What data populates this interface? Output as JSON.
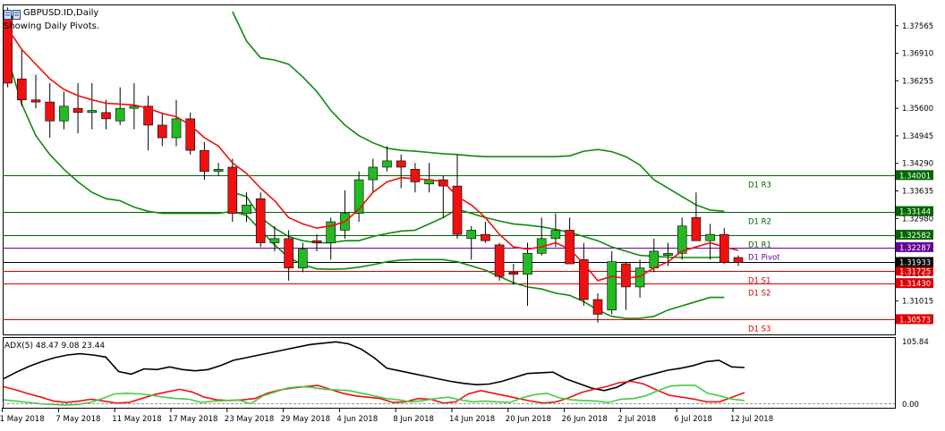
{
  "chart": {
    "title": "GBPUSD.ID,Daily",
    "subtitle": "Showing Daily Pivots.",
    "adx_label": "ADX(5) 48.47 9.08 23.44"
  },
  "colors": {
    "bull": "#22bb22",
    "bear": "#ee1111",
    "ema": "#ee1111",
    "bands": "#118811",
    "resistance": "#006600",
    "support": "#dd0000",
    "pivot": "#660099",
    "price": "#000000",
    "adx_main": "#000000",
    "adx_plus": "#44cc44",
    "adx_minus": "#ee1111"
  },
  "chart_data": [
    {
      "type": "candlestick",
      "title": "GBPUSD.ID,Daily",
      "ylim": [
        1.3022,
        1.3805
      ],
      "y_ticks": [
        "1.37565",
        "1.36910",
        "1.36255",
        "1.35600",
        "1.34945",
        "1.34290",
        "1.33635",
        "1.32980",
        "1.32325",
        "1.31670",
        "1.31015"
      ],
      "x_ticks": [
        {
          "index": 0,
          "label": "1 May 2018"
        },
        {
          "index": 4,
          "label": "7 May 2018"
        },
        {
          "index": 8,
          "label": "11 May 2018"
        },
        {
          "index": 12,
          "label": "17 May 2018"
        },
        {
          "index": 16,
          "label": "23 May 2018"
        },
        {
          "index": 20,
          "label": "29 May 2018"
        },
        {
          "index": 24,
          "label": "4 Jun 2018"
        },
        {
          "index": 28,
          "label": "8 Jun 2018"
        },
        {
          "index": 32,
          "label": "14 Jun 2018"
        },
        {
          "index": 36,
          "label": "20 Jun 2018"
        },
        {
          "index": 40,
          "label": "26 Jun 2018"
        },
        {
          "index": 44,
          "label": "2 Jul 2018"
        },
        {
          "index": 48,
          "label": "6 Jul 2018"
        },
        {
          "index": 52,
          "label": "12 Jul 2018"
        }
      ],
      "candles": [
        [
          1.378,
          1.38,
          1.361,
          1.362
        ],
        [
          1.363,
          1.37,
          1.3565,
          1.358
        ],
        [
          1.358,
          1.364,
          1.356,
          1.3575
        ],
        [
          1.3575,
          1.362,
          1.349,
          1.353
        ],
        [
          1.353,
          1.36,
          1.351,
          1.3565
        ],
        [
          1.356,
          1.362,
          1.35,
          1.355
        ],
        [
          1.355,
          1.362,
          1.351,
          1.3555
        ],
        [
          1.355,
          1.358,
          1.351,
          1.3535
        ],
        [
          1.353,
          1.361,
          1.352,
          1.356
        ],
        [
          1.356,
          1.362,
          1.351,
          1.3565
        ],
        [
          1.3565,
          1.359,
          1.346,
          1.352
        ],
        [
          1.352,
          1.355,
          1.347,
          1.349
        ],
        [
          1.349,
          1.358,
          1.347,
          1.3535
        ],
        [
          1.3535,
          1.355,
          1.345,
          1.346
        ],
        [
          1.346,
          1.348,
          1.339,
          1.341
        ],
        [
          1.341,
          1.343,
          1.34,
          1.3415
        ],
        [
          1.342,
          1.344,
          1.329,
          1.331
        ],
        [
          1.331,
          1.336,
          1.329,
          1.333
        ],
        [
          1.3345,
          1.336,
          1.323,
          1.324
        ],
        [
          1.324,
          1.328,
          1.322,
          1.325
        ],
        [
          1.325,
          1.327,
          1.315,
          1.318
        ],
        [
          1.318,
          1.324,
          1.317,
          1.3225
        ],
        [
          1.3245,
          1.326,
          1.322,
          1.324
        ],
        [
          1.324,
          1.33,
          1.32,
          1.329
        ],
        [
          1.327,
          1.3365,
          1.325,
          1.331
        ],
        [
          1.331,
          1.341,
          1.329,
          1.339
        ],
        [
          1.339,
          1.344,
          1.336,
          1.342
        ],
        [
          1.342,
          1.347,
          1.341,
          1.3435
        ],
        [
          1.3435,
          1.345,
          1.337,
          1.342
        ],
        [
          1.3415,
          1.343,
          1.336,
          1.3385
        ],
        [
          1.338,
          1.343,
          1.336,
          1.339
        ],
        [
          1.339,
          1.34,
          1.33,
          1.3375
        ],
        [
          1.3375,
          1.345,
          1.325,
          1.326
        ],
        [
          1.325,
          1.328,
          1.32,
          1.327
        ],
        [
          1.326,
          1.329,
          1.324,
          1.3245
        ],
        [
          1.3235,
          1.324,
          1.315,
          1.316
        ],
        [
          1.317,
          1.319,
          1.314,
          1.3165
        ],
        [
          1.3165,
          1.324,
          1.309,
          1.3215
        ],
        [
          1.3215,
          1.33,
          1.321,
          1.325
        ],
        [
          1.325,
          1.331,
          1.323,
          1.327
        ],
        [
          1.327,
          1.33,
          1.319,
          1.319
        ],
        [
          1.32,
          1.324,
          1.309,
          1.3105
        ],
        [
          1.3105,
          1.312,
          1.305,
          1.307
        ],
        [
          1.308,
          1.322,
          1.307,
          1.3195
        ],
        [
          1.319,
          1.3195,
          1.308,
          1.3135
        ],
        [
          1.3135,
          1.32,
          1.311,
          1.318
        ],
        [
          1.318,
          1.325,
          1.317,
          1.322
        ],
        [
          1.321,
          1.324,
          1.3185,
          1.3215
        ],
        [
          1.3215,
          1.33,
          1.32,
          1.328
        ],
        [
          1.33,
          1.336,
          1.325,
          1.3245
        ],
        [
          1.3245,
          1.3285,
          1.32,
          1.326
        ],
        [
          1.326,
          1.3275,
          1.319,
          1.3193
        ],
        [
          1.3205,
          1.321,
          1.3185,
          1.3193
        ]
      ],
      "ema": [
        1.375,
        1.37,
        1.3665,
        1.363,
        1.3605,
        1.359,
        1.358,
        1.3572,
        1.357,
        1.3568,
        1.356,
        1.3548,
        1.354,
        1.352,
        1.349,
        1.347,
        1.343,
        1.3405,
        1.337,
        1.334,
        1.33,
        1.3285,
        1.3275,
        1.328,
        1.329,
        1.332,
        1.336,
        1.3385,
        1.3395,
        1.3392,
        1.339,
        1.3386,
        1.335,
        1.333,
        1.33,
        1.326,
        1.323,
        1.3225,
        1.323,
        1.324,
        1.3225,
        1.319,
        1.315,
        1.316,
        1.3155,
        1.316,
        1.318,
        1.3195,
        1.322,
        1.323,
        1.324,
        1.323,
        1.3222
      ],
      "upper_band": [
        null,
        null,
        null,
        null,
        null,
        null,
        null,
        null,
        null,
        null,
        null,
        null,
        null,
        null,
        null,
        null,
        1.379,
        1.372,
        1.368,
        1.3675,
        1.3665,
        1.3635,
        1.36,
        1.3555,
        1.352,
        1.3495,
        1.3478,
        1.3465,
        1.346,
        1.3458,
        1.3455,
        1.3452,
        1.345,
        1.3447,
        1.3445,
        1.3445,
        1.3445,
        1.3445,
        1.3445,
        1.3445,
        1.3447,
        1.3458,
        1.3462,
        1.3457,
        1.3445,
        1.3425,
        1.339,
        1.337,
        1.335,
        1.333,
        1.3318,
        1.3315,
        null
      ],
      "lower_band": [
        1.368,
        1.357,
        1.3495,
        1.345,
        1.3415,
        1.3385,
        1.336,
        1.3345,
        1.334,
        1.3325,
        1.3315,
        1.331,
        1.331,
        1.331,
        1.331,
        1.331,
        1.3315,
        1.3305,
        1.327,
        1.3235,
        1.3205,
        1.3188,
        1.3178,
        1.3177,
        1.3178,
        1.3182,
        1.3188,
        1.3195,
        1.3199,
        1.32,
        1.32,
        1.32,
        1.3195,
        1.3185,
        1.3175,
        1.316,
        1.3145,
        1.3135,
        1.313,
        1.312,
        1.3115,
        1.31,
        1.308,
        1.3065,
        1.306,
        1.306,
        1.3065,
        1.308,
        1.309,
        1.31,
        1.311,
        1.311,
        null
      ],
      "middle_band": [
        null,
        null,
        null,
        null,
        null,
        null,
        null,
        null,
        null,
        null,
        null,
        null,
        null,
        null,
        null,
        null,
        1.336,
        1.335,
        1.33,
        1.3275,
        1.3255,
        1.3245,
        1.324,
        1.324,
        1.3245,
        1.3245,
        1.3255,
        1.3262,
        1.3268,
        1.327,
        1.3285,
        1.33,
        1.332,
        1.331,
        1.33,
        1.3292,
        1.3285,
        1.3282,
        1.3278,
        1.3272,
        1.3265,
        1.3255,
        1.3245,
        1.323,
        1.322,
        1.321,
        1.3208,
        1.3206,
        1.3205,
        1.3205,
        1.3205,
        1.3206,
        null
      ],
      "levels": [
        {
          "name": "D1  R3",
          "value": 1.34001,
          "label": "1.34001",
          "kind": "resistance"
        },
        {
          "name": "D1  R2",
          "value": 1.33144,
          "label": "1.33144",
          "kind": "resistance"
        },
        {
          "name": "D1  R1",
          "value": 1.32582,
          "label": "1.32582",
          "kind": "resistance"
        },
        {
          "name": "D1  Pivot",
          "value": 1.32287,
          "label": "1.32287",
          "kind": "pivot"
        },
        {
          "name": "D1  S1",
          "value": 1.31725,
          "label": "1.31725",
          "kind": "support"
        },
        {
          "name": "D1  S2",
          "value": 1.3143,
          "label": "1.31430",
          "kind": "support"
        },
        {
          "name": "D1  S3",
          "value": 1.30573,
          "label": "1.30573",
          "kind": "support"
        }
      ],
      "current_price": {
        "value": 1.31933,
        "label": "1.31933"
      }
    },
    {
      "type": "line",
      "title": "ADX(5) 48.47 9.08 23.44",
      "ylim": [
        0,
        105.84
      ],
      "y_ticks": [
        "105.84",
        "0.00"
      ],
      "series": [
        {
          "values": [
            44,
            54,
            63,
            70,
            76,
            80,
            82,
            80,
            77,
            55,
            51,
            59,
            58,
            62,
            58,
            56,
            58,
            64,
            72,
            76,
            80,
            84,
            88,
            92,
            96,
            98,
            100,
            97,
            89,
            76,
            60,
            56,
            52,
            48,
            44,
            40,
            37,
            35,
            36,
            40,
            46,
            52,
            53,
            54,
            44,
            37,
            30,
            26,
            31,
            41,
            47,
            52,
            57,
            60,
            64,
            70,
            72,
            62,
            61
          ]
        },
        {
          "values": [
            32,
            27,
            21,
            16,
            10,
            8,
            10,
            13,
            10,
            7,
            8,
            14,
            20,
            24,
            28,
            24,
            16,
            12,
            11,
            12,
            14,
            22,
            27,
            30,
            32,
            34,
            28,
            22,
            18,
            16,
            14,
            8,
            9,
            14,
            13,
            7,
            9,
            21,
            26,
            22,
            18,
            14,
            10,
            7,
            9,
            15,
            23,
            28,
            32,
            38,
            40,
            36,
            27,
            19,
            16,
            13,
            9,
            9,
            16,
            23
          ]
        },
        {
          "values": [
            12,
            10,
            8,
            6,
            5,
            4,
            5,
            8,
            14,
            21,
            22,
            21,
            19,
            16,
            14,
            13,
            8,
            10,
            11,
            12,
            6,
            18,
            24,
            30,
            32,
            31,
            28,
            27,
            26,
            22,
            18,
            14,
            12,
            9,
            11,
            14,
            16,
            12,
            9,
            10,
            9,
            8,
            15,
            20,
            22,
            15,
            12,
            11,
            10,
            8,
            13,
            14,
            18,
            26,
            33,
            34,
            34,
            22,
            18,
            13,
            11
          ]
        }
      ]
    }
  ]
}
